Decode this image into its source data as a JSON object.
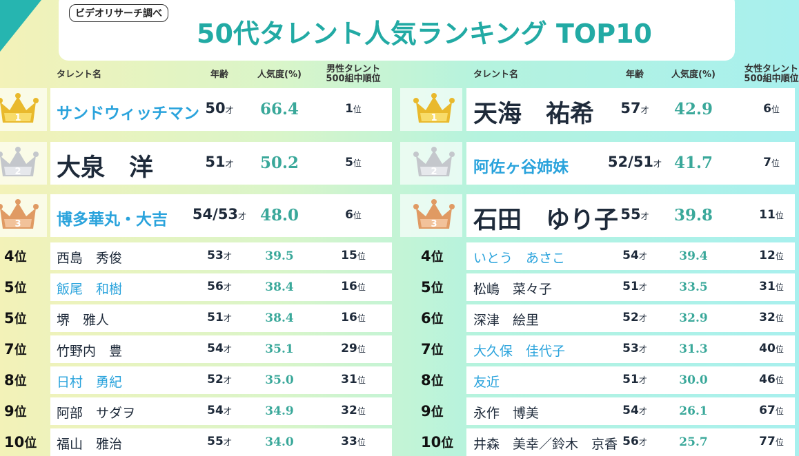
{
  "header": {
    "source": "ビデオリサーチ調べ",
    "title": "50代タレント人気ランキング TOP10"
  },
  "age_unit": "才",
  "rank_unit": "位",
  "tables": [
    {
      "columns": [
        "タレント名",
        "年齢",
        "人気度(%)",
        "男性タレント\n500組中順位"
      ],
      "rows": [
        {
          "rank": 1,
          "name": "サンドウィッチマン",
          "age": "50",
          "popularity": "66.4",
          "overall": "1",
          "name_color": "#2aa3dc"
        },
        {
          "rank": 2,
          "name": "大泉　洋",
          "age": "51",
          "popularity": "50.2",
          "overall": "5",
          "name_color": "#1e2a3a"
        },
        {
          "rank": 3,
          "name": "博多華丸・大吉",
          "age": "54/53",
          "popularity": "48.0",
          "overall": "6",
          "name_color": "#2aa3dc"
        },
        {
          "rank": 4,
          "name": "西島　秀俊",
          "age": "53",
          "popularity": "39.5",
          "overall": "15",
          "name_color": "#1e2a3a"
        },
        {
          "rank": 5,
          "name": "飯尾　和樹",
          "age": "56",
          "popularity": "38.4",
          "overall": "16",
          "name_color": "#2aa3dc"
        },
        {
          "rank": 5,
          "name": "堺　雅人",
          "age": "51",
          "popularity": "38.4",
          "overall": "16",
          "name_color": "#1e2a3a"
        },
        {
          "rank": 7,
          "name": "竹野内　豊",
          "age": "54",
          "popularity": "35.1",
          "overall": "29",
          "name_color": "#1e2a3a"
        },
        {
          "rank": 8,
          "name": "日村　勇紀",
          "age": "52",
          "popularity": "35.0",
          "overall": "31",
          "name_color": "#2aa3dc"
        },
        {
          "rank": 9,
          "name": "阿部　サダヲ",
          "age": "54",
          "popularity": "34.9",
          "overall": "32",
          "name_color": "#1e2a3a"
        },
        {
          "rank": 10,
          "name": "福山　雅治",
          "age": "55",
          "popularity": "34.0",
          "overall": "33",
          "name_color": "#1e2a3a"
        }
      ]
    },
    {
      "columns": [
        "タレント名",
        "年齢",
        "人気度(%)",
        "女性タレント\n500組中順位"
      ],
      "rows": [
        {
          "rank": 1,
          "name": "天海　祐希",
          "age": "57",
          "popularity": "42.9",
          "overall": "6",
          "name_color": "#1e2a3a"
        },
        {
          "rank": 2,
          "name": "阿佐ヶ谷姉妹",
          "age": "52/51",
          "popularity": "41.7",
          "overall": "7",
          "name_color": "#2aa3dc"
        },
        {
          "rank": 3,
          "name": "石田　ゆり子",
          "age": "55",
          "popularity": "39.8",
          "overall": "11",
          "name_color": "#1e2a3a"
        },
        {
          "rank": 4,
          "name": "いとう　あさこ",
          "age": "54",
          "popularity": "39.4",
          "overall": "12",
          "name_color": "#2aa3dc"
        },
        {
          "rank": 5,
          "name": "松嶋　菜々子",
          "age": "51",
          "popularity": "33.5",
          "overall": "31",
          "name_color": "#1e2a3a"
        },
        {
          "rank": 6,
          "name": "深津　絵里",
          "age": "52",
          "popularity": "32.9",
          "overall": "32",
          "name_color": "#1e2a3a"
        },
        {
          "rank": 7,
          "name": "大久保　佳代子",
          "age": "53",
          "popularity": "31.3",
          "overall": "40",
          "name_color": "#2aa3dc"
        },
        {
          "rank": 8,
          "name": "友近",
          "age": "51",
          "popularity": "30.0",
          "overall": "46",
          "name_color": "#2aa3dc"
        },
        {
          "rank": 9,
          "name": "永作　博美",
          "age": "54",
          "popularity": "26.1",
          "overall": "67",
          "name_color": "#1e2a3a"
        },
        {
          "rank": 10,
          "name": "井森　美幸／鈴木　京香",
          "age": "56",
          "popularity": "25.7",
          "overall": "77",
          "name_color": "#1e2a3a"
        }
      ]
    }
  ]
}
